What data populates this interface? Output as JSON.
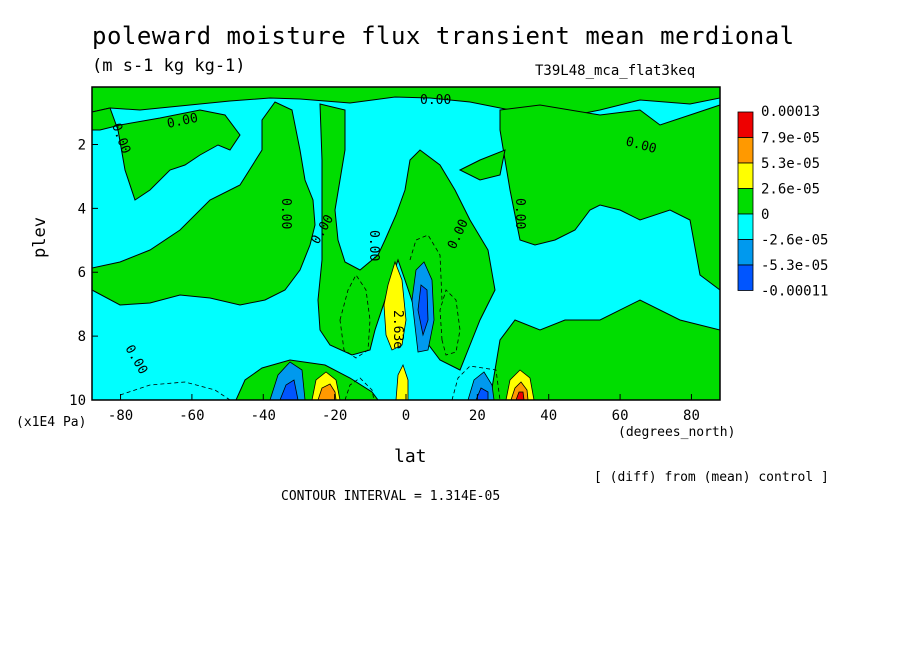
{
  "chart_data": {
    "type": "contour",
    "title": "poleward moisture flux transient mean merdional",
    "units": "(m s-1 kg kg-1)",
    "run_label": "T39L48_mca_flat3keq",
    "xlabel": "lat",
    "x_units": "(degrees_north)",
    "ylabel": "plev",
    "y_units": "(x1E4 Pa)",
    "x_ticks": [
      -80,
      -60,
      -40,
      -20,
      0,
      20,
      40,
      60,
      80
    ],
    "y_ticks": [
      2,
      4,
      6,
      8,
      10
    ],
    "xlim": [
      -88,
      88
    ],
    "ylim": [
      0.2,
      10
    ],
    "y_inverted": true,
    "colorbar": [
      {
        "label": "0.00013",
        "color": "#ee0000"
      },
      {
        "label": "7.9e-05",
        "color": "#ff9900"
      },
      {
        "label": "5.3e-05",
        "color": "#ffff00"
      },
      {
        "label": "2.6e-05",
        "color": "#00dd00"
      },
      {
        "label": "0",
        "color": "#00ffff"
      },
      {
        "label": "-2.6e-05",
        "color": "#0099ee"
      },
      {
        "label": "-5.3e-05",
        "color": "#0055ff"
      },
      {
        "label": "-0.00011",
        "color": null
      }
    ],
    "contour_labels": [
      "0.00",
      "0.00",
      "0.00",
      "0.00",
      "0.00",
      "0.00",
      "0.00",
      "0.00",
      "0.00",
      "0.00",
      "2.63e"
    ],
    "note": "[ (diff) from (mean) control ]",
    "contour_interval": "CONTOUR INTERVAL = 1.314E-05"
  },
  "colors": {
    "green": "#00dd00",
    "cyan": "#00ffff",
    "yellow": "#ffff00",
    "orange": "#ff9900",
    "blue": "#0099ee",
    "darkblue": "#0055ff",
    "red": "#ee0000"
  }
}
